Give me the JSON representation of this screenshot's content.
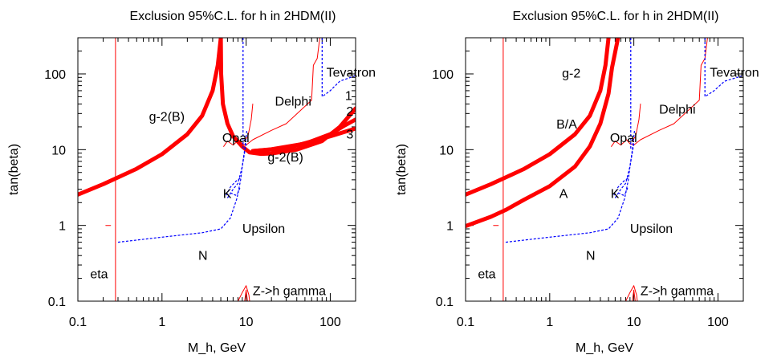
{
  "colors": {
    "constraint": "#ff0000",
    "experiment": "#0000ff",
    "frame": "#000000",
    "background": "#ffffff"
  },
  "chart_data": [
    {
      "type": "line",
      "title": "Exclusion 95%C.L.  for h  in 2HDM(II)",
      "xlabel": "M_h,  GeV",
      "ylabel": "tan(beta)",
      "xscale": "log",
      "yscale": "log",
      "xlim": [
        0.1,
        200
      ],
      "ylim": [
        0.1,
        300
      ],
      "xticks": [
        0.1,
        1,
        10,
        100
      ],
      "xtick_labels": [
        "0.1",
        "1",
        "10",
        "100"
      ],
      "yticks": [
        0.1,
        1,
        10,
        100
      ],
      "ytick_labels": [
        "0.1",
        "1",
        "10",
        "100"
      ],
      "grid": false,
      "series": [
        {
          "style": "thick-red",
          "points": [
            [
              0.1,
              2.55
            ],
            [
              0.2,
              3.5
            ],
            [
              0.3,
              4.3
            ],
            [
              0.5,
              5.6
            ],
            [
              1,
              8.7
            ],
            [
              2,
              16
            ],
            [
              3,
              28
            ],
            [
              4,
              60
            ],
            [
              4.6,
              130
            ],
            [
              5,
              300
            ]
          ]
        },
        {
          "style": "thick-red",
          "points": [
            [
              5,
              300
            ],
            [
              5.05,
              100
            ],
            [
              5.3,
              40
            ],
            [
              6,
              22
            ],
            [
              7,
              15
            ],
            [
              9,
              11
            ],
            [
              11,
              9.2
            ],
            [
              15,
              8.8
            ],
            [
              20,
              8.9
            ],
            [
              40,
              10
            ],
            [
              80,
              13
            ],
            [
              130,
              20
            ],
            [
              200,
              35
            ]
          ]
        },
        {
          "style": "thick-red",
          "points": [
            [
              12,
              9.6
            ],
            [
              20,
              10.1
            ],
            [
              50,
              12
            ],
            [
              100,
              16
            ],
            [
              150,
              21
            ],
            [
              200,
              25
            ]
          ]
        },
        {
          "style": "thick-red",
          "points": [
            [
              12,
              9.6
            ],
            [
              30,
              10.4
            ],
            [
              100,
              15
            ],
            [
              200,
              19
            ]
          ]
        },
        {
          "style": "thin-red",
          "points": [
            [
              0.28,
              0.1
            ],
            [
              0.28,
              300
            ]
          ]
        },
        {
          "style": "thin-red",
          "points": [
            [
              0.215,
              1
            ],
            [
              0.245,
              1
            ]
          ]
        },
        {
          "style": "thin-red",
          "points": [
            [
              5.4,
              11
            ],
            [
              6,
              13
            ],
            [
              7,
              11.5
            ],
            [
              8.2,
              13.5
            ],
            [
              9,
              12
            ],
            [
              10,
              11.5
            ],
            [
              12,
              13.5
            ],
            [
              20,
              18
            ],
            [
              30,
              22
            ],
            [
              60,
              45
            ],
            [
              63,
              130
            ],
            [
              70,
              160
            ],
            [
              75,
              300
            ]
          ]
        },
        {
          "style": "thin-red",
          "points": [
            [
              9.5,
              13
            ],
            [
              10.5,
              15
            ],
            [
              11.5,
              25
            ],
            [
              12,
              40
            ]
          ]
        },
        {
          "style": "thin-red",
          "points": [
            [
              8,
              0.1
            ],
            [
              9,
              0.13
            ],
            [
              10,
              0.16
            ],
            [
              10.8,
              0.12
            ],
            [
              11,
              0.1
            ]
          ]
        },
        {
          "style": "thin-red",
          "points": [
            [
              9.6,
              0.1
            ],
            [
              10,
              0.14
            ],
            [
              10.4,
              0.1
            ]
          ]
        },
        {
          "style": "dashed-blue",
          "points": [
            [
              0.3,
              0.6
            ],
            [
              1,
              0.7
            ],
            [
              3,
              0.8
            ],
            [
              5,
              0.9
            ],
            [
              6.5,
              1.25
            ],
            [
              7.8,
              2.3
            ],
            [
              8.6,
              4
            ],
            [
              9,
              6
            ],
            [
              9.6,
              10
            ],
            [
              10.2,
              18
            ]
          ]
        },
        {
          "style": "dashed-blue",
          "points": [
            [
              6,
              2.3
            ],
            [
              7,
              3
            ],
            [
              8,
              3.6
            ],
            [
              9,
              6
            ],
            [
              10,
              12
            ]
          ]
        },
        {
          "style": "dashed-blue",
          "points": [
            [
              6.5,
              2.7
            ],
            [
              7.5,
              2.5
            ],
            [
              8,
              2.7
            ],
            [
              8.5,
              3.2
            ]
          ]
        },
        {
          "style": "dashed-blue",
          "points": [
            [
              5.8,
              2.5
            ],
            [
              6.5,
              3.2
            ],
            [
              7.5,
              3.8
            ],
            [
              8.5,
              4.2
            ]
          ]
        },
        {
          "style": "dashed-blue",
          "points": [
            [
              9.2,
              300
            ],
            [
              9.2,
              10
            ]
          ]
        },
        {
          "style": "dashed-blue",
          "points": [
            [
              80,
              300
            ],
            [
              80,
              50
            ],
            [
              100,
              60
            ],
            [
              130,
              80
            ],
            [
              200,
              95
            ]
          ]
        }
      ],
      "annotations": [
        {
          "text": "g-2(B)",
          "x": 0.7,
          "y": 24
        },
        {
          "text": "Opal",
          "x": 5.2,
          "y": 12.5
        },
        {
          "text": "Delphi",
          "x": 22,
          "y": 38
        },
        {
          "text": "Tevatron",
          "x": 90,
          "y": 92
        },
        {
          "text": "g-2(B)",
          "x": 18,
          "y": 7
        },
        {
          "text": "1",
          "x": 150,
          "y": 45
        },
        {
          "text": "2",
          "x": 155,
          "y": 28
        },
        {
          "text": "3",
          "x": 155,
          "y": 14
        },
        {
          "text": "K",
          "x": 5.3,
          "y": 2.3
        },
        {
          "text": "Upsilon",
          "x": 9,
          "y": 0.8
        },
        {
          "text": "N",
          "x": 2.7,
          "y": 0.35
        },
        {
          "text": "eta",
          "x": 0.14,
          "y": 0.2
        },
        {
          "text": "Z->h gamma",
          "x": 12,
          "y": 0.12
        }
      ]
    },
    {
      "type": "line",
      "title": "Exclusion 95%C.L.  for h  in 2HDM(II)",
      "xlabel": "M_h,  GeV",
      "ylabel": "tan(beta)",
      "xscale": "log",
      "yscale": "log",
      "xlim": [
        0.1,
        200
      ],
      "ylim": [
        0.1,
        300
      ],
      "xticks": [
        0.1,
        1,
        10,
        100
      ],
      "xtick_labels": [
        "0.1",
        "1",
        "10",
        "100"
      ],
      "yticks": [
        0.1,
        1,
        10,
        100
      ],
      "ytick_labels": [
        "0.1",
        "1",
        "10",
        "100"
      ],
      "grid": false,
      "series": [
        {
          "style": "thick-red",
          "points": [
            [
              0.1,
              2.55
            ],
            [
              0.2,
              3.5
            ],
            [
              0.3,
              4.3
            ],
            [
              0.5,
              5.6
            ],
            [
              1,
              8.7
            ],
            [
              2,
              16
            ],
            [
              3,
              28
            ],
            [
              4,
              60
            ],
            [
              4.6,
              130
            ],
            [
              5,
              300
            ]
          ]
        },
        {
          "style": "thick-red",
          "points": [
            [
              0.1,
              0.98
            ],
            [
              0.2,
              1.3
            ],
            [
              0.3,
              1.6
            ],
            [
              0.5,
              2.2
            ],
            [
              1,
              3.3
            ],
            [
              2,
              6
            ],
            [
              3,
              11
            ],
            [
              4,
              22
            ],
            [
              5,
              55
            ],
            [
              5.5,
              120
            ],
            [
              6.5,
              300
            ]
          ]
        },
        {
          "style": "thin-red",
          "points": [
            [
              0.28,
              0.1
            ],
            [
              0.28,
              300
            ]
          ]
        },
        {
          "style": "thin-red",
          "points": [
            [
              0.215,
              1
            ],
            [
              0.245,
              1
            ]
          ]
        },
        {
          "style": "thin-red",
          "points": [
            [
              5.4,
              11
            ],
            [
              6,
              13
            ],
            [
              7,
              11.5
            ],
            [
              8.2,
              13.5
            ],
            [
              9,
              12
            ],
            [
              10,
              11.5
            ],
            [
              12,
              13.5
            ],
            [
              20,
              18
            ],
            [
              30,
              22
            ],
            [
              60,
              45
            ],
            [
              63,
              130
            ],
            [
              70,
              160
            ],
            [
              75,
              300
            ]
          ]
        },
        {
          "style": "thin-red",
          "points": [
            [
              9.5,
              13
            ],
            [
              10.5,
              15
            ],
            [
              11.5,
              25
            ],
            [
              12,
              40
            ]
          ]
        },
        {
          "style": "thin-red",
          "points": [
            [
              8,
              0.1
            ],
            [
              9,
              0.13
            ],
            [
              10,
              0.16
            ],
            [
              10.8,
              0.12
            ],
            [
              11,
              0.1
            ]
          ]
        },
        {
          "style": "thin-red",
          "points": [
            [
              9.6,
              0.1
            ],
            [
              10,
              0.14
            ],
            [
              10.4,
              0.1
            ]
          ]
        },
        {
          "style": "dashed-blue",
          "points": [
            [
              0.3,
              0.6
            ],
            [
              1,
              0.7
            ],
            [
              3,
              0.8
            ],
            [
              5,
              0.9
            ],
            [
              6.5,
              1.25
            ],
            [
              7.8,
              2.3
            ],
            [
              8.6,
              4
            ],
            [
              9,
              6
            ],
            [
              9.6,
              10
            ],
            [
              10.2,
              18
            ]
          ]
        },
        {
          "style": "dashed-blue",
          "points": [
            [
              6,
              2.3
            ],
            [
              7,
              3
            ],
            [
              8,
              3.6
            ],
            [
              9,
              6
            ],
            [
              10,
              12
            ]
          ]
        },
        {
          "style": "dashed-blue",
          "points": [
            [
              6.5,
              2.7
            ],
            [
              7.5,
              2.5
            ],
            [
              8,
              2.7
            ],
            [
              8.5,
              3.2
            ]
          ]
        },
        {
          "style": "dashed-blue",
          "points": [
            [
              5.8,
              2.5
            ],
            [
              6.5,
              3.2
            ],
            [
              7.5,
              3.8
            ],
            [
              8.5,
              4.2
            ]
          ]
        },
        {
          "style": "dashed-blue",
          "points": [
            [
              9.2,
              300
            ],
            [
              9.2,
              10
            ]
          ]
        },
        {
          "style": "dashed-blue",
          "points": [
            [
              70,
              300
            ],
            [
              70,
              50
            ],
            [
              90,
              60
            ],
            [
              120,
              80
            ],
            [
              200,
              95
            ]
          ]
        }
      ],
      "annotations": [
        {
          "text": "g-2",
          "x": 1.4,
          "y": 90
        },
        {
          "text": "B/A",
          "x": 1.2,
          "y": 19
        },
        {
          "text": "Opal",
          "x": 5.2,
          "y": 12.5
        },
        {
          "text": "Delphi",
          "x": 20,
          "y": 30
        },
        {
          "text": "Tevatron",
          "x": 80,
          "y": 92
        },
        {
          "text": "A",
          "x": 1.3,
          "y": 2.3
        },
        {
          "text": "K",
          "x": 5.3,
          "y": 2.3
        },
        {
          "text": "Upsilon",
          "x": 9,
          "y": 0.8
        },
        {
          "text": "N",
          "x": 2.7,
          "y": 0.35
        },
        {
          "text": "eta",
          "x": 0.14,
          "y": 0.2
        },
        {
          "text": "Z->h gamma",
          "x": 12,
          "y": 0.12
        }
      ]
    }
  ]
}
